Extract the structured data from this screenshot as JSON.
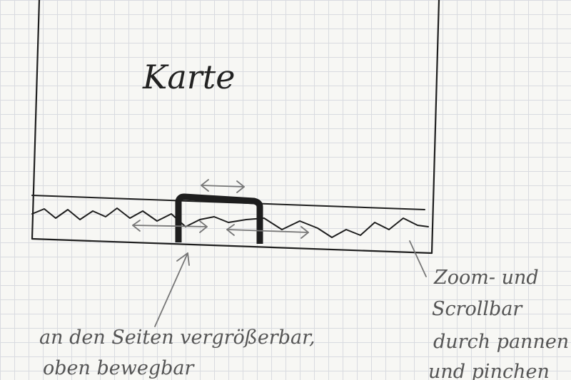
{
  "map": {
    "label": "Karte"
  },
  "scrollbar": {
    "handle_position": 0.48,
    "handle_width_fraction": 0.2
  },
  "annotations": {
    "handle_note_line1": "an den Seiten vergrößerbar,",
    "handle_note_line2": "oben bewegbar",
    "bar_note_line1": "Zoom- und",
    "bar_note_line2": "Scrollbar",
    "bar_note_line3": "durch pannen",
    "bar_note_line4": "und pinchen"
  },
  "colors": {
    "ink": "#1e1e1e",
    "pencil": "#5a5a5a"
  }
}
